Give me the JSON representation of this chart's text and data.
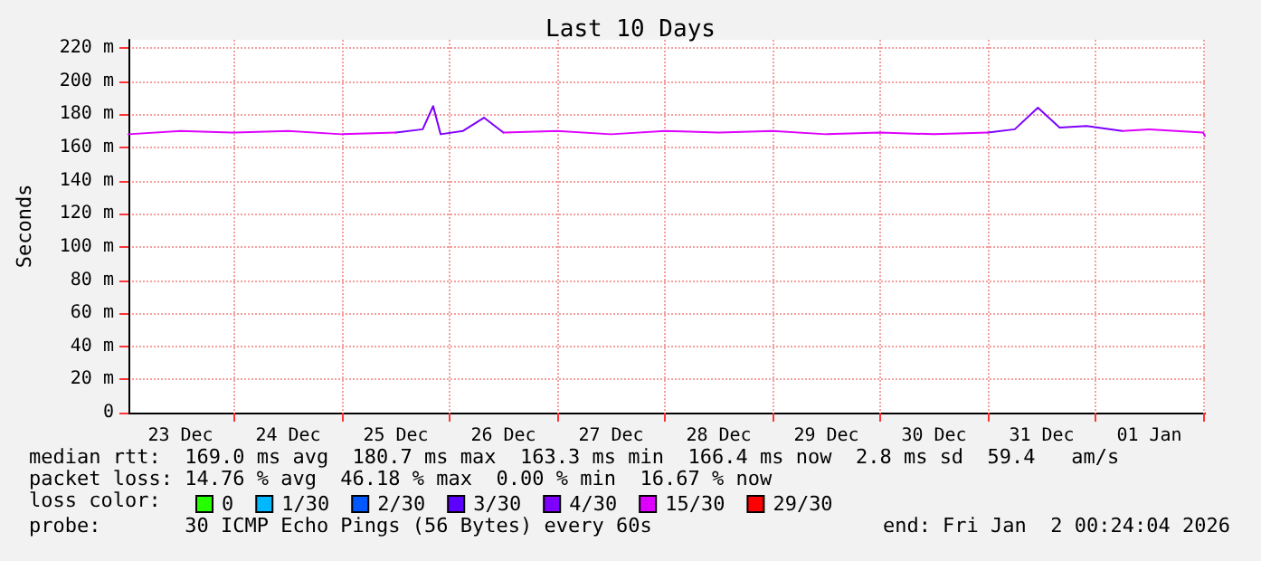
{
  "chart_data": {
    "type": "line",
    "title": "Last 10 Days",
    "ylabel": "Seconds",
    "legend_title": "loss color:",
    "legend": "bottom",
    "grid": true,
    "marker": "none",
    "line_style": "solid",
    "xlim": [
      "2025-12-23T00:24",
      "2026-01-02T00:24"
    ],
    "xticks": [
      {
        "value": "2025-12-23T12:00",
        "label": "23 Dec"
      },
      {
        "value": "2025-12-24T00:00",
        "label": null
      },
      {
        "value": "2025-12-24T12:00",
        "label": "24 Dec"
      },
      {
        "value": "2025-12-25T00:00",
        "label": null
      },
      {
        "value": "2025-12-25T12:00",
        "label": "25 Dec"
      },
      {
        "value": "2025-12-26T00:00",
        "label": null
      },
      {
        "value": "2025-12-26T12:00",
        "label": "26 Dec"
      },
      {
        "value": "2025-12-27T00:00",
        "label": null
      },
      {
        "value": "2025-12-27T12:00",
        "label": "27 Dec"
      },
      {
        "value": "2025-12-28T00:00",
        "label": null
      },
      {
        "value": "2025-12-28T12:00",
        "label": "28 Dec"
      },
      {
        "value": "2025-12-29T00:00",
        "label": null
      },
      {
        "value": "2025-12-29T12:00",
        "label": "29 Dec"
      },
      {
        "value": "2025-12-30T00:00",
        "label": null
      },
      {
        "value": "2025-12-30T12:00",
        "label": "30 Dec"
      },
      {
        "value": "2025-12-31T00:00",
        "label": null
      },
      {
        "value": "2025-12-31T12:00",
        "label": "31 Dec"
      },
      {
        "value": "2026-01-01T00:00",
        "label": null
      },
      {
        "value": "2026-01-01T12:00",
        "label": "01 Jan"
      },
      {
        "value": "2026-01-02T00:00",
        "label": null
      }
    ],
    "ylim": [
      0,
      225
    ],
    "yticks": [
      0,
      {
        "value": 20,
        "label": "20 m"
      },
      {
        "value": 40,
        "label": "40 m"
      },
      {
        "value": 60,
        "label": "60 m"
      },
      {
        "value": 80,
        "label": "80 m"
      },
      {
        "value": 100,
        "label": "100 m"
      },
      {
        "value": 120,
        "label": "120 m"
      },
      {
        "value": 140,
        "label": "140 m"
      },
      {
        "value": 160,
        "label": "160 m"
      },
      {
        "value": 180,
        "label": "180 m"
      },
      {
        "value": 200,
        "label": "200 m"
      },
      {
        "value": 220,
        "label": "220 m"
      }
    ],
    "series": [
      {
        "name": "0",
        "color": "#26ff00"
      },
      {
        "name": "1/30",
        "color": "#00b8ff"
      },
      {
        "name": "2/30",
        "color": "#0059ff"
      },
      {
        "name": "3/30",
        "color": "#5e00ff"
      },
      {
        "name": "4/30",
        "color": "#7e00ff",
        "x": [
          "2025-12-25T12:00",
          "2025-12-25T18:00",
          "2025-12-25T20:20",
          "2025-12-25T22:00",
          "2025-12-26T03:00",
          "2025-12-26T07:40",
          "2025-12-26T12:00",
          "2025-12-28T12:00",
          "2025-12-31T00:00",
          "2025-12-31T06:00",
          "2025-12-31T11:10",
          "2025-12-31T16:00",
          "2025-12-31T22:00",
          "2026-01-01T06:00"
        ],
        "values": [
          169,
          171,
          185,
          168,
          170,
          178,
          169,
          null,
          169,
          171,
          184,
          172,
          173,
          170
        ]
      },
      {
        "name": "15/30",
        "color": "#dd00ff",
        "x": [
          "2025-12-23T00:24",
          "2025-12-23T12:00",
          "2025-12-24T00:00",
          "2025-12-24T12:00",
          "2025-12-25T00:00",
          "2025-12-25T12:00",
          "2025-12-25T15:00",
          "2025-12-26T12:00",
          "2025-12-27T00:00",
          "2025-12-27T12:00",
          "2025-12-28T00:00",
          "2025-12-28T12:00",
          "2025-12-29T00:00",
          "2025-12-29T12:00",
          "2025-12-30T00:00",
          "2025-12-30T12:00",
          "2025-12-31T00:00",
          "2025-12-31T03:00",
          "2026-01-01T06:00",
          "2026-01-01T12:00",
          "2026-01-02T00:00",
          "2026-01-02T00:24"
        ],
        "values": [
          168,
          170,
          169,
          170,
          168,
          169,
          null,
          169,
          170,
          168,
          170,
          169,
          170,
          168,
          169,
          168,
          169,
          null,
          170,
          171,
          169,
          167
        ]
      },
      {
        "name": "29/30",
        "color": "#ff0000"
      }
    ],
    "annotations": [
      "median rtt:  169.0 ms avg  180.7 ms max  163.3 ms min  166.4 ms now  2.8 ms sd  59.4   am/s",
      "packet loss: 14.76 % avg  46.18 % max  0.00 % min  16.67 % now",
      "probe:       30 ICMP Echo Pings (56 Bytes) every 60s",
      "end: Fri Jan  2 00:24:04 2026"
    ]
  }
}
